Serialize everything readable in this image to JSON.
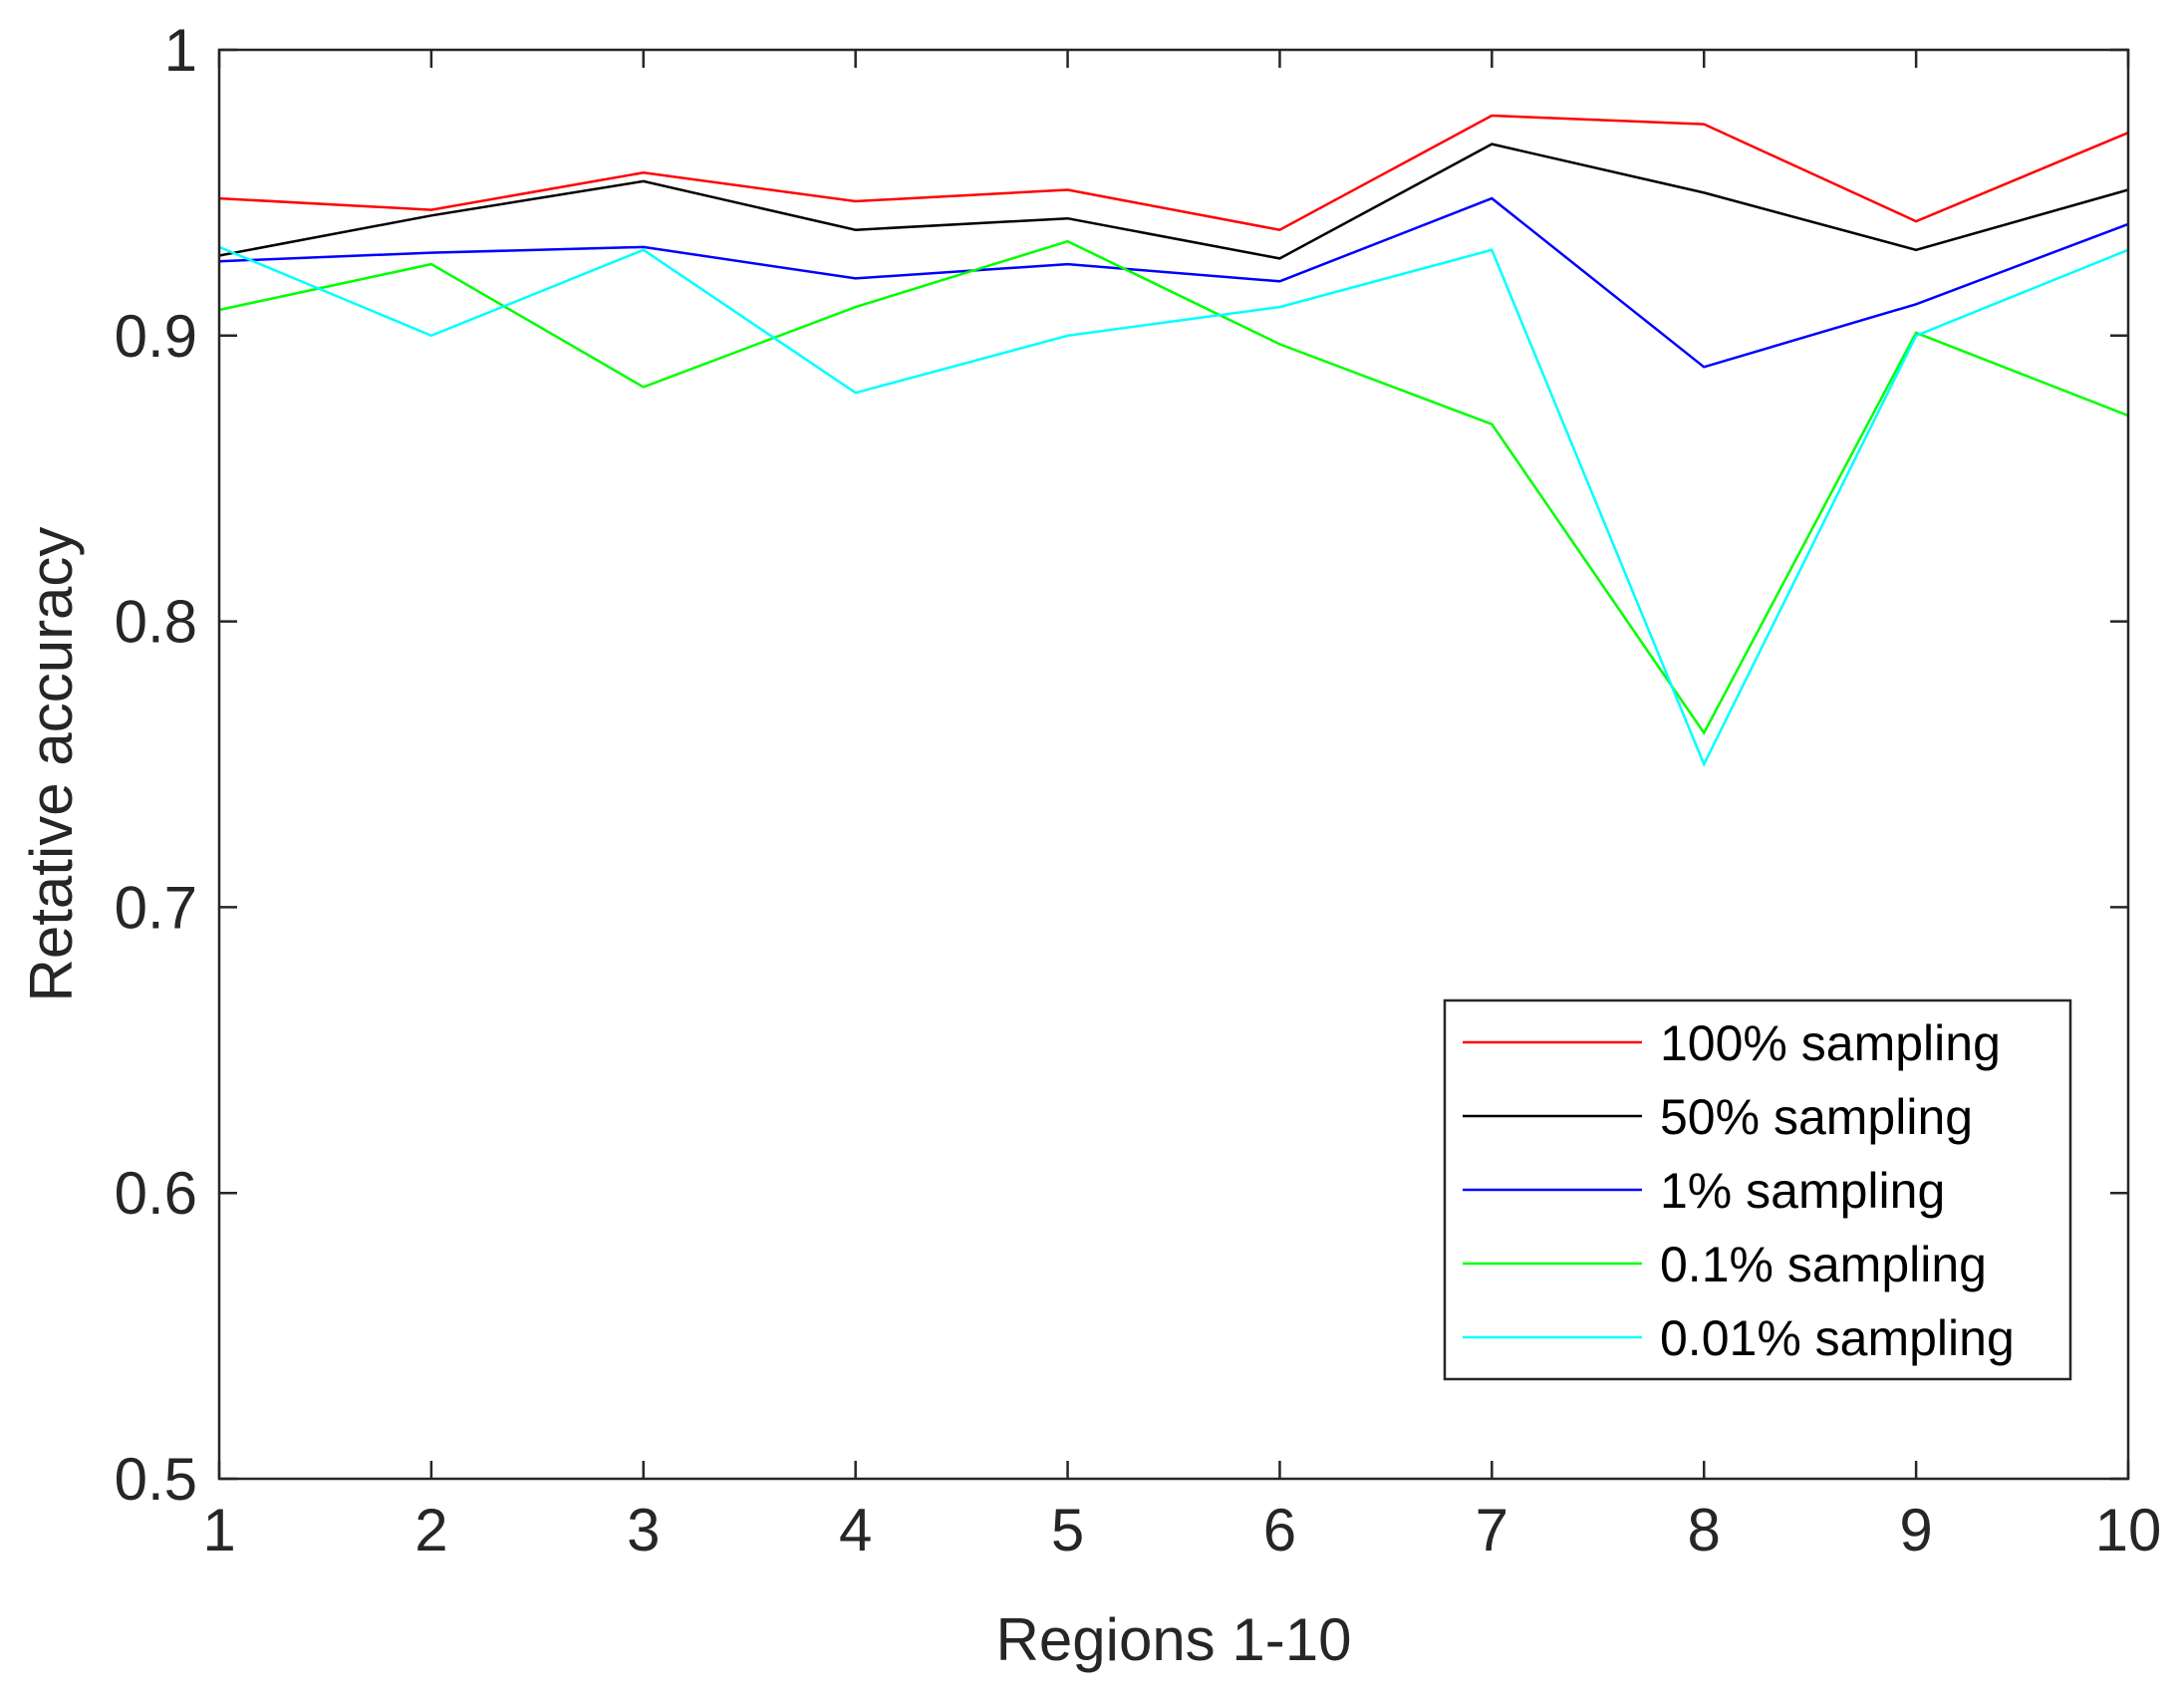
{
  "chart_data": {
    "type": "line",
    "title": "",
    "xlabel": "Regions 1-10",
    "ylabel": "Retative accuracy",
    "xlim": [
      1,
      10
    ],
    "ylim": [
      0.5,
      1
    ],
    "x": [
      1,
      2,
      3,
      4,
      5,
      6,
      7,
      8,
      9,
      10
    ],
    "xticks": [
      "1",
      "2",
      "3",
      "4",
      "5",
      "6",
      "7",
      "8",
      "9",
      "10"
    ],
    "yticks": [
      "0.5",
      "0.6",
      "0.7",
      "0.8",
      "0.9",
      "1"
    ],
    "ytick_values": [
      0.5,
      0.6,
      0.7,
      0.8,
      0.9,
      1.0
    ],
    "grid": false,
    "legend_position": "bottom-right",
    "series": [
      {
        "name": "100% sampling",
        "color": "#ff0000",
        "values": [
          0.948,
          0.944,
          0.957,
          0.947,
          0.951,
          0.937,
          0.977,
          0.974,
          0.94,
          0.971
        ]
      },
      {
        "name": "50% sampling",
        "color": "#000000",
        "values": [
          0.928,
          0.942,
          0.954,
          0.937,
          0.941,
          0.927,
          0.967,
          0.95,
          0.93,
          0.951
        ]
      },
      {
        "name": "1% sampling",
        "color": "#0000ff",
        "values": [
          0.926,
          0.929,
          0.931,
          0.92,
          0.925,
          0.919,
          0.948,
          0.889,
          0.911,
          0.939
        ]
      },
      {
        "name": "0.1% sampling",
        "color": "#00ff00",
        "values": [
          0.909,
          0.925,
          0.882,
          0.91,
          0.933,
          0.897,
          0.869,
          0.761,
          0.901,
          0.872
        ]
      },
      {
        "name": "0.01% sampling",
        "color": "#00ffff",
        "values": [
          0.931,
          0.9,
          0.93,
          0.88,
          0.9,
          0.91,
          0.93,
          0.75,
          0.9,
          0.93
        ]
      }
    ]
  }
}
